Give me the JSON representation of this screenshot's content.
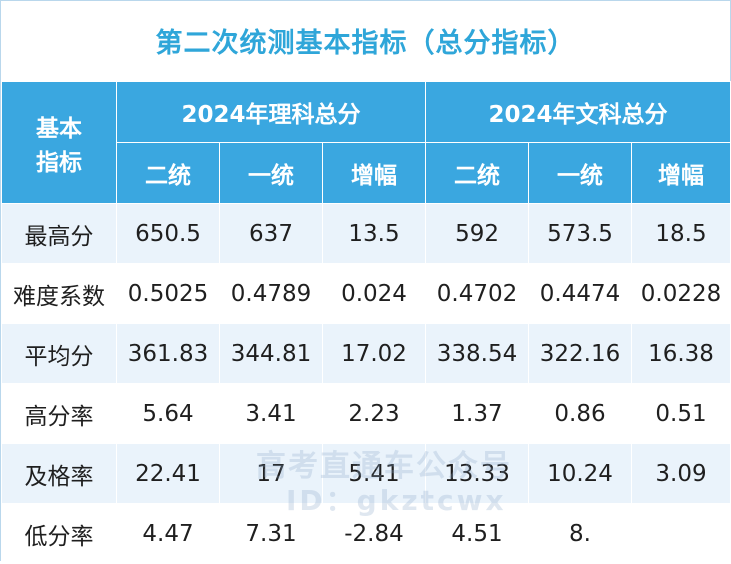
{
  "title": "第二次统测基本指标（总分指标）",
  "header": {
    "corner": "基本\n指标",
    "corner_line1": "基本",
    "corner_line2": "指标",
    "group1": "2024年理科总分",
    "group2": "2024年文科总分",
    "sub": [
      "二统",
      "一统",
      "增幅",
      "二统",
      "一统",
      "增幅"
    ]
  },
  "rows": [
    {
      "label": "最高分",
      "values": [
        "650.5",
        "637",
        "13.5",
        "592",
        "573.5",
        "18.5"
      ]
    },
    {
      "label": "难度系数",
      "values": [
        "0.5025",
        "0.4789",
        "0.024",
        "0.4702",
        "0.4474",
        "0.0228"
      ]
    },
    {
      "label": "平均分",
      "values": [
        "361.83",
        "344.81",
        "17.02",
        "338.54",
        "322.16",
        "16.38"
      ]
    },
    {
      "label": "高分率",
      "values": [
        "5.64",
        "3.41",
        "2.23",
        "1.37",
        "0.86",
        "0.51"
      ]
    },
    {
      "label": "及格率",
      "values": [
        "22.41",
        "17",
        "5.41",
        "13.33",
        "10.24",
        "3.09"
      ]
    },
    {
      "label": "低分率",
      "values": [
        "4.47",
        "7.31",
        "-2.84",
        "4.51",
        "8.",
        ""
      ]
    }
  ],
  "watermark": {
    "line1": "高考直通车公众号",
    "line2": "ID：gkztcwx"
  },
  "colors": {
    "header_bg": "#3aa7e0",
    "title_text": "#2fa6d9",
    "row_alt_bg": "#eaf3fb"
  }
}
